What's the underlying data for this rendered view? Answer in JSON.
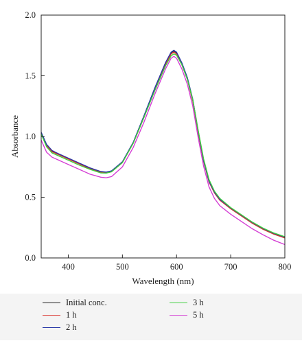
{
  "chart_data": {
    "type": "line",
    "xlabel": "Wavelength (nm)",
    "ylabel": "Absorbance",
    "xlim": [
      350,
      800
    ],
    "ylim": [
      0.0,
      2.0
    ],
    "xticks": [
      400,
      500,
      600,
      700,
      800
    ],
    "xtick_labels": [
      "400",
      "500",
      "600",
      "700",
      "800"
    ],
    "yticks": [
      0.0,
      0.5,
      1.0,
      1.5,
      2.0
    ],
    "ytick_labels": [
      "0.0",
      "0.5",
      "1.0",
      "1.5",
      "2.0"
    ],
    "grid": false,
    "legend_position": "bottom",
    "x": [
      350,
      360,
      370,
      380,
      400,
      420,
      440,
      460,
      470,
      480,
      500,
      520,
      540,
      560,
      580,
      590,
      595,
      600,
      610,
      620,
      630,
      640,
      650,
      660,
      670,
      680,
      700,
      720,
      740,
      760,
      780,
      800
    ],
    "series": [
      {
        "name": "Initial conc.",
        "color": "#1a1a1a",
        "values": [
          1.03,
          0.93,
          0.88,
          0.86,
          0.82,
          0.78,
          0.74,
          0.71,
          0.705,
          0.715,
          0.79,
          0.95,
          1.17,
          1.4,
          1.61,
          1.69,
          1.705,
          1.69,
          1.6,
          1.48,
          1.3,
          1.04,
          0.8,
          0.63,
          0.54,
          0.48,
          0.41,
          0.35,
          0.29,
          0.24,
          0.2,
          0.17
        ]
      },
      {
        "name": "1 h",
        "color": "#d9322c",
        "values": [
          1.025,
          0.925,
          0.875,
          0.855,
          0.815,
          0.775,
          0.735,
          0.705,
          0.7,
          0.71,
          0.785,
          0.945,
          1.16,
          1.39,
          1.6,
          1.68,
          1.695,
          1.68,
          1.59,
          1.47,
          1.29,
          1.03,
          0.795,
          0.625,
          0.535,
          0.475,
          0.405,
          0.345,
          0.285,
          0.235,
          0.195,
          0.165
        ]
      },
      {
        "name": "2 h",
        "color": "#2b3aa8",
        "values": [
          1.035,
          0.935,
          0.885,
          0.862,
          0.822,
          0.782,
          0.742,
          0.712,
          0.707,
          0.717,
          0.792,
          0.952,
          1.172,
          1.402,
          1.612,
          1.695,
          1.71,
          1.695,
          1.605,
          1.485,
          1.305,
          1.045,
          0.802,
          0.632,
          0.542,
          0.482,
          0.412,
          0.352,
          0.292,
          0.242,
          0.202,
          0.172
        ]
      },
      {
        "name": "3 h",
        "color": "#3ecf3e",
        "values": [
          1.02,
          0.915,
          0.865,
          0.845,
          0.805,
          0.765,
          0.73,
          0.7,
          0.698,
          0.71,
          0.785,
          0.945,
          1.16,
          1.38,
          1.585,
          1.665,
          1.68,
          1.67,
          1.59,
          1.47,
          1.3,
          1.05,
          0.815,
          0.645,
          0.55,
          0.49,
          0.415,
          0.355,
          0.295,
          0.245,
          0.205,
          0.175
        ]
      },
      {
        "name": "5 h",
        "color": "#d43fd4",
        "values": [
          0.97,
          0.87,
          0.83,
          0.81,
          0.77,
          0.73,
          0.69,
          0.665,
          0.66,
          0.67,
          0.75,
          0.91,
          1.12,
          1.35,
          1.56,
          1.645,
          1.66,
          1.645,
          1.555,
          1.43,
          1.25,
          0.99,
          0.755,
          0.585,
          0.49,
          0.43,
          0.36,
          0.3,
          0.24,
          0.19,
          0.145,
          0.11
        ]
      }
    ]
  }
}
